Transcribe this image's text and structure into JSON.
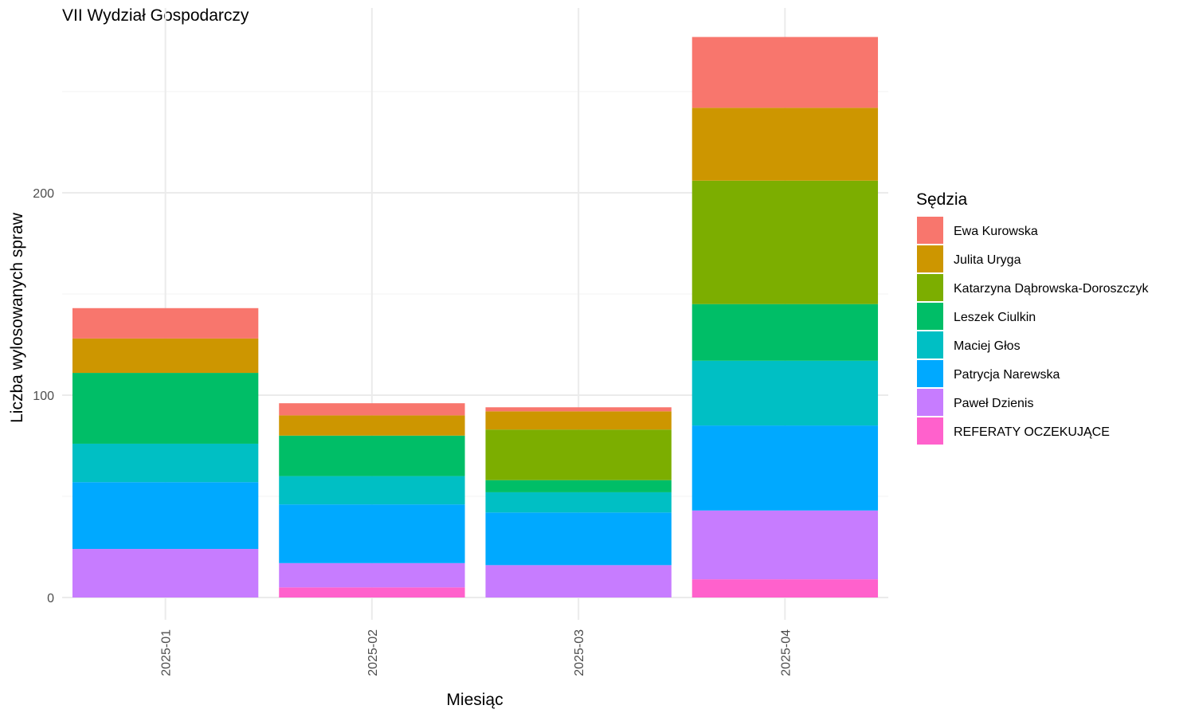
{
  "chart_data": {
    "type": "bar",
    "stacked": true,
    "title": "VII Wydział Gospodarczy",
    "xlabel": "Miesiąc",
    "ylabel": "Liczba wylosowanych spraw",
    "categories": [
      "2025-01",
      "2025-02",
      "2025-03",
      "2025-04"
    ],
    "y_ticks": [
      0,
      100,
      200
    ],
    "ylim": [
      -10,
      290
    ],
    "grid": true,
    "legend": {
      "title": "Sędzia",
      "position": "right"
    },
    "series": [
      {
        "name": "Ewa Kurowska",
        "color": "#F8766D",
        "values": [
          15,
          6,
          2,
          35
        ]
      },
      {
        "name": "Julita Uryga",
        "color": "#CD9600",
        "values": [
          17,
          10,
          9,
          36
        ]
      },
      {
        "name": "Katarzyna Dąbrowska-Doroszczyk",
        "color": "#7CAE00",
        "values": [
          0,
          0,
          25,
          61
        ]
      },
      {
        "name": "Leszek Ciulkin",
        "color": "#00BE67",
        "values": [
          35,
          20,
          6,
          28
        ]
      },
      {
        "name": "Maciej Głos",
        "color": "#00BFC4",
        "values": [
          19,
          14,
          10,
          32
        ]
      },
      {
        "name": "Patrycja Narewska",
        "color": "#00A9FF",
        "values": [
          33,
          29,
          26,
          42
        ]
      },
      {
        "name": "Paweł Dzienis",
        "color": "#C77CFF",
        "values": [
          24,
          12,
          16,
          34
        ]
      },
      {
        "name": "REFERATY OCZEKUJĄCE",
        "color": "#FF61CC",
        "values": [
          0,
          5,
          0,
          9
        ]
      }
    ]
  }
}
